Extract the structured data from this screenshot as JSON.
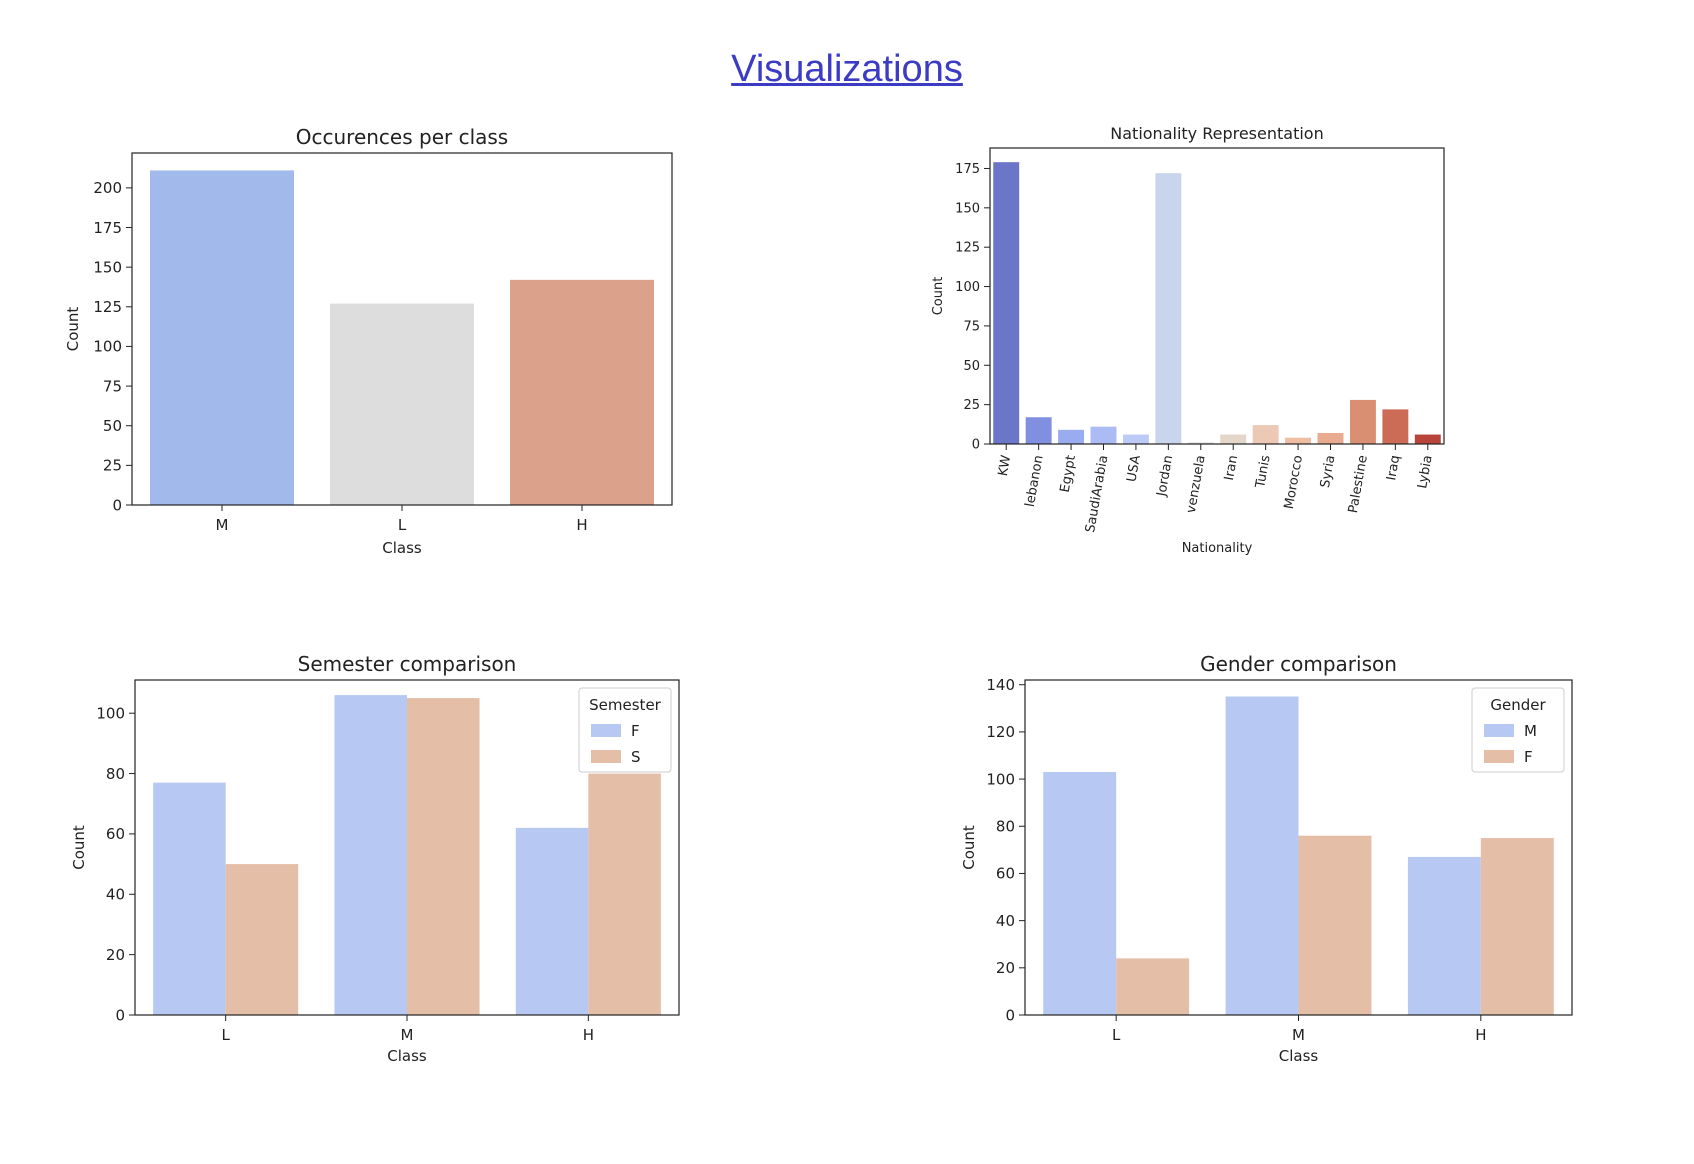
{
  "page": {
    "title": "Visualizations"
  },
  "chart_data": [
    {
      "type": "bar",
      "title": "Occurences per class",
      "xlabel": "Class",
      "ylabel": "Count",
      "categories": [
        "M",
        "L",
        "H"
      ],
      "values": [
        211,
        127,
        142
      ],
      "colors": [
        "#a2b9ec",
        "#dddddd",
        "#dba18b"
      ],
      "yticks": [
        0,
        25,
        50,
        75,
        100,
        125,
        150,
        175,
        200
      ],
      "ylim": [
        0,
        222
      ],
      "grid": false
    },
    {
      "type": "bar",
      "title": "Nationality Representation",
      "xlabel": "Nationality",
      "ylabel": "Count",
      "categories": [
        "KW",
        "lebanon",
        "Egypt",
        "SaudiArabia",
        "USA",
        "Jordan",
        "venzuela",
        "Iran",
        "Tunis",
        "Morocco",
        "Syria",
        "Palestine",
        "Iraq",
        "Lybia"
      ],
      "values": [
        179,
        17,
        9,
        11,
        6,
        172,
        1,
        6,
        12,
        4,
        7,
        28,
        22,
        6
      ],
      "colors": [
        "#6b76c8",
        "#818fe0",
        "#9aacf0",
        "#abbcf5",
        "#bccbf6",
        "#c8d5ec",
        "#dcdcdc",
        "#e5d6ca",
        "#ebc9b5",
        "#eebea3",
        "#e9ab8f",
        "#db8f72",
        "#cc6c57",
        "#b9443a"
      ],
      "yticks": [
        0,
        25,
        50,
        75,
        100,
        125,
        150,
        175
      ],
      "ylim": [
        0,
        188
      ],
      "grid": false
    },
    {
      "type": "bar",
      "title": "Semester comparison",
      "xlabel": "Class",
      "ylabel": "Count",
      "categories": [
        "L",
        "M",
        "H"
      ],
      "series": [
        {
          "name": "F",
          "values": [
            77,
            106,
            62
          ],
          "color": "#b7c9f2"
        },
        {
          "name": "S",
          "values": [
            50,
            105,
            80
          ],
          "color": "#e4bea7"
        }
      ],
      "legend_title": "Semester",
      "legend": "top-right",
      "yticks": [
        0,
        20,
        40,
        60,
        80,
        100
      ],
      "ylim": [
        0,
        111
      ],
      "grid": false
    },
    {
      "type": "bar",
      "title": "Gender comparison",
      "xlabel": "Class",
      "ylabel": "Count",
      "categories": [
        "L",
        "M",
        "H"
      ],
      "series": [
        {
          "name": "M",
          "values": [
            103,
            135,
            67
          ],
          "color": "#b7c9f2"
        },
        {
          "name": "F",
          "values": [
            24,
            76,
            75
          ],
          "color": "#e4bea7"
        }
      ],
      "legend_title": "Gender",
      "legend": "top-right",
      "yticks": [
        0,
        20,
        40,
        60,
        80,
        100,
        120,
        140
      ],
      "ylim": [
        0,
        142
      ],
      "grid": false
    }
  ]
}
